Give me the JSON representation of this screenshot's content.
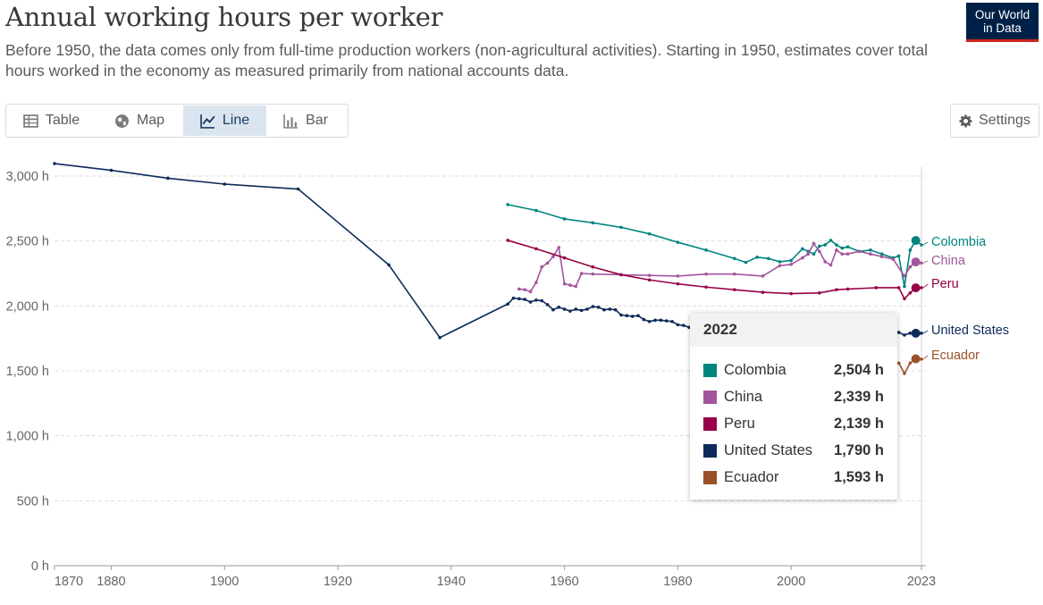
{
  "header": {
    "title": "Annual working hours per worker",
    "subtitle": "Before 1950, the data comes only from full-time production workers (non-agricultural activities). Starting in 1950, estimates cover total hours worked in the economy as measured primarily from national accounts data.",
    "logo_line1": "Our World",
    "logo_line2": "in Data"
  },
  "tabs": [
    {
      "label": "Table",
      "icon": "table-icon",
      "active": false
    },
    {
      "label": "Map",
      "icon": "globe-icon",
      "active": false
    },
    {
      "label": "Line",
      "icon": "line-chart-icon",
      "active": true
    },
    {
      "label": "Bar",
      "icon": "bar-chart-icon",
      "active": false
    }
  ],
  "settings_label": "Settings",
  "tooltip": {
    "year": "2022",
    "rows": [
      {
        "name": "Colombia",
        "value": "2,504 h",
        "color": "#00847e"
      },
      {
        "name": "China",
        "value": "2,339 h",
        "color": "#a2559c"
      },
      {
        "name": "Peru",
        "value": "2,139 h",
        "color": "#970046"
      },
      {
        "name": "United States",
        "value": "1,790 h",
        "color": "#0d2a59"
      },
      {
        "name": "Ecuador",
        "value": "1,593 h",
        "color": "#9a5129"
      }
    ]
  },
  "chart_data": {
    "type": "line",
    "title": "Annual working hours per worker",
    "xlim": [
      1868,
      2024
    ],
    "ylim": [
      0,
      3000
    ],
    "grid": "horizontal dashed",
    "x_ticks": [
      "1870",
      "1880",
      "1900",
      "1920",
      "1940",
      "1960",
      "1980",
      "2000",
      "2023"
    ],
    "x_tick_values": [
      1870,
      1880,
      1900,
      1920,
      1940,
      1960,
      1980,
      2000,
      2023
    ],
    "y_ticks": [
      "0 h",
      "500 h",
      "1,000 h",
      "1,500 h",
      "2,000 h",
      "2,500 h",
      "3,000 h"
    ],
    "y_tick_values": [
      0,
      500,
      1000,
      1500,
      2000,
      2500,
      3000
    ],
    "legend_placement": "right end labels",
    "series": [
      {
        "name": "Colombia",
        "color": "#00847e",
        "points": [
          [
            1950,
            2780
          ],
          [
            1955,
            2735
          ],
          [
            1960,
            2670
          ],
          [
            1965,
            2640
          ],
          [
            1970,
            2605
          ],
          [
            1975,
            2555
          ],
          [
            1980,
            2490
          ],
          [
            1985,
            2430
          ],
          [
            1990,
            2365
          ],
          [
            1992,
            2335
          ],
          [
            1994,
            2375
          ],
          [
            1996,
            2365
          ],
          [
            1998,
            2340
          ],
          [
            2000,
            2350
          ],
          [
            2002,
            2440
          ],
          [
            2003,
            2420
          ],
          [
            2004,
            2400
          ],
          [
            2005,
            2460
          ],
          [
            2006,
            2470
          ],
          [
            2007,
            2505
          ],
          [
            2008,
            2470
          ],
          [
            2009,
            2445
          ],
          [
            2010,
            2455
          ],
          [
            2012,
            2420
          ],
          [
            2014,
            2430
          ],
          [
            2016,
            2400
          ],
          [
            2018,
            2370
          ],
          [
            2019,
            2385
          ],
          [
            2020,
            2150
          ],
          [
            2021,
            2430
          ],
          [
            2022,
            2504
          ],
          [
            2023,
            2470
          ]
        ]
      },
      {
        "name": "China",
        "color": "#a2559c",
        "points": [
          [
            1952,
            2130
          ],
          [
            1953,
            2125
          ],
          [
            1954,
            2110
          ],
          [
            1955,
            2180
          ],
          [
            1956,
            2300
          ],
          [
            1957,
            2330
          ],
          [
            1958,
            2380
          ],
          [
            1959,
            2450
          ],
          [
            1960,
            2170
          ],
          [
            1961,
            2160
          ],
          [
            1962,
            2150
          ],
          [
            1963,
            2250
          ],
          [
            1965,
            2245
          ],
          [
            1970,
            2240
          ],
          [
            1975,
            2235
          ],
          [
            1980,
            2230
          ],
          [
            1985,
            2245
          ],
          [
            1990,
            2245
          ],
          [
            1995,
            2230
          ],
          [
            1998,
            2310
          ],
          [
            2000,
            2320
          ],
          [
            2002,
            2370
          ],
          [
            2003,
            2400
          ],
          [
            2004,
            2480
          ],
          [
            2005,
            2420
          ],
          [
            2006,
            2340
          ],
          [
            2007,
            2315
          ],
          [
            2008,
            2430
          ],
          [
            2009,
            2400
          ],
          [
            2010,
            2400
          ],
          [
            2012,
            2420
          ],
          [
            2014,
            2400
          ],
          [
            2016,
            2380
          ],
          [
            2018,
            2360
          ],
          [
            2020,
            2230
          ],
          [
            2021,
            2300
          ],
          [
            2022,
            2339
          ],
          [
            2023,
            2330
          ]
        ]
      },
      {
        "name": "Peru",
        "color": "#970046",
        "points": [
          [
            1950,
            2505
          ],
          [
            1955,
            2440
          ],
          [
            1960,
            2370
          ],
          [
            1965,
            2300
          ],
          [
            1970,
            2240
          ],
          [
            1975,
            2200
          ],
          [
            1980,
            2170
          ],
          [
            1985,
            2145
          ],
          [
            1990,
            2125
          ],
          [
            1995,
            2105
          ],
          [
            2000,
            2095
          ],
          [
            2005,
            2100
          ],
          [
            2008,
            2125
          ],
          [
            2010,
            2130
          ],
          [
            2015,
            2140
          ],
          [
            2019,
            2140
          ],
          [
            2020,
            2055
          ],
          [
            2021,
            2100
          ],
          [
            2022,
            2139
          ],
          [
            2023,
            2140
          ]
        ]
      },
      {
        "name": "United States",
        "color": "#0d2a59",
        "points": [
          [
            1870,
            3096
          ],
          [
            1880,
            3044
          ],
          [
            1890,
            2983
          ],
          [
            1900,
            2938
          ],
          [
            1913,
            2900
          ],
          [
            1929,
            2316
          ],
          [
            1938,
            1756
          ],
          [
            1950,
            2015
          ],
          [
            1951,
            2060
          ],
          [
            1952,
            2055
          ],
          [
            1953,
            2050
          ],
          [
            1954,
            2030
          ],
          [
            1955,
            2045
          ],
          [
            1956,
            2040
          ],
          [
            1957,
            2010
          ],
          [
            1958,
            1970
          ],
          [
            1959,
            1990
          ],
          [
            1960,
            1975
          ],
          [
            1961,
            1960
          ],
          [
            1962,
            1975
          ],
          [
            1963,
            1965
          ],
          [
            1964,
            1975
          ],
          [
            1965,
            1995
          ],
          [
            1966,
            1990
          ],
          [
            1967,
            1970
          ],
          [
            1968,
            1975
          ],
          [
            1969,
            1970
          ],
          [
            1970,
            1930
          ],
          [
            1971,
            1925
          ],
          [
            1972,
            1920
          ],
          [
            1973,
            1925
          ],
          [
            1974,
            1895
          ],
          [
            1975,
            1880
          ],
          [
            1976,
            1890
          ],
          [
            1977,
            1890
          ],
          [
            1978,
            1885
          ],
          [
            1979,
            1880
          ],
          [
            1980,
            1855
          ],
          [
            1981,
            1850
          ],
          [
            1982,
            1835
          ],
          [
            1983,
            1845
          ],
          [
            1984,
            1840
          ],
          [
            1990,
            1825
          ],
          [
            2000,
            1830
          ],
          [
            2005,
            1815
          ],
          [
            2010,
            1800
          ],
          [
            2015,
            1795
          ],
          [
            2019,
            1796
          ],
          [
            2020,
            1776
          ],
          [
            2021,
            1790
          ],
          [
            2022,
            1790
          ],
          [
            2023,
            1790
          ]
        ]
      },
      {
        "name": "Ecuador",
        "color": "#9a5129",
        "points": [
          [
            2019,
            1560
          ],
          [
            2020,
            1480
          ],
          [
            2021,
            1560
          ],
          [
            2022,
            1593
          ],
          [
            2023,
            1590
          ]
        ]
      }
    ]
  }
}
